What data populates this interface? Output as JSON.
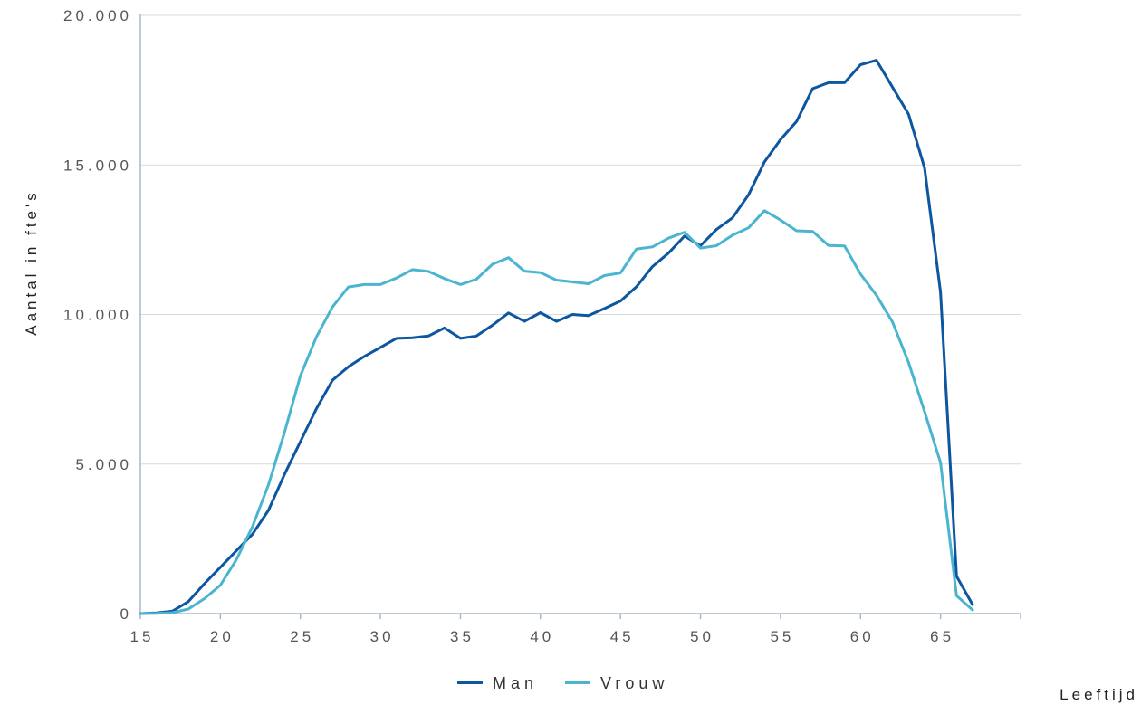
{
  "chart_data": {
    "type": "line",
    "ylabel": "Aantal in fte's",
    "xlabel": "Leeftijd",
    "xlim": [
      15,
      70
    ],
    "ylim": [
      0,
      20000
    ],
    "xticks": [
      15,
      20,
      25,
      30,
      35,
      40,
      45,
      50,
      55,
      60,
      65
    ],
    "xtick_labels": [
      "15",
      "20",
      "25",
      "30",
      "35",
      "40",
      "45",
      "50",
      "55",
      "60",
      "65"
    ],
    "yticks": [
      0,
      5000,
      10000,
      15000,
      20000
    ],
    "ytick_labels": [
      "0",
      "5.000",
      "10.000",
      "15.000",
      "20.000"
    ],
    "grid": "horizontal",
    "legend_position": "bottom-center",
    "x": [
      15,
      16,
      17,
      18,
      19,
      20,
      21,
      22,
      23,
      24,
      25,
      26,
      27,
      28,
      29,
      30,
      31,
      32,
      33,
      34,
      35,
      36,
      37,
      38,
      39,
      40,
      41,
      42,
      43,
      44,
      45,
      46,
      47,
      48,
      49,
      50,
      51,
      52,
      53,
      54,
      55,
      56,
      57,
      58,
      59,
      60,
      61,
      62,
      63,
      64,
      65,
      66,
      67
    ],
    "series": [
      {
        "name": "Man",
        "color": "#0d56a0",
        "values": [
          0,
          20,
          80,
          400,
          1000,
          1550,
          2100,
          2650,
          3450,
          4650,
          5750,
          6850,
          7800,
          8250,
          8600,
          8900,
          9200,
          9220,
          9280,
          9550,
          9200,
          9280,
          9640,
          10050,
          9770,
          10060,
          9770,
          10000,
          9960,
          10200,
          10450,
          10930,
          11600,
          12050,
          12620,
          12300,
          12840,
          13230,
          14000,
          15100,
          15850,
          16450,
          17550,
          17750,
          17750,
          18350,
          18500,
          17600,
          16700,
          14900,
          10750,
          1250,
          300
        ]
      },
      {
        "name": "Vrouw",
        "color": "#4bb5d0",
        "values": [
          0,
          10,
          30,
          150,
          500,
          950,
          1800,
          2900,
          4300,
          6050,
          7950,
          9250,
          10250,
          10920,
          11000,
          11000,
          11220,
          11500,
          11440,
          11200,
          11000,
          11180,
          11680,
          11900,
          11450,
          11400,
          11150,
          11090,
          11030,
          11300,
          11390,
          12190,
          12260,
          12550,
          12750,
          12220,
          12300,
          12650,
          12900,
          13470,
          13160,
          12800,
          12780,
          12310,
          12290,
          11350,
          10640,
          9750,
          8400,
          6750,
          5050,
          600,
          120
        ]
      }
    ]
  }
}
